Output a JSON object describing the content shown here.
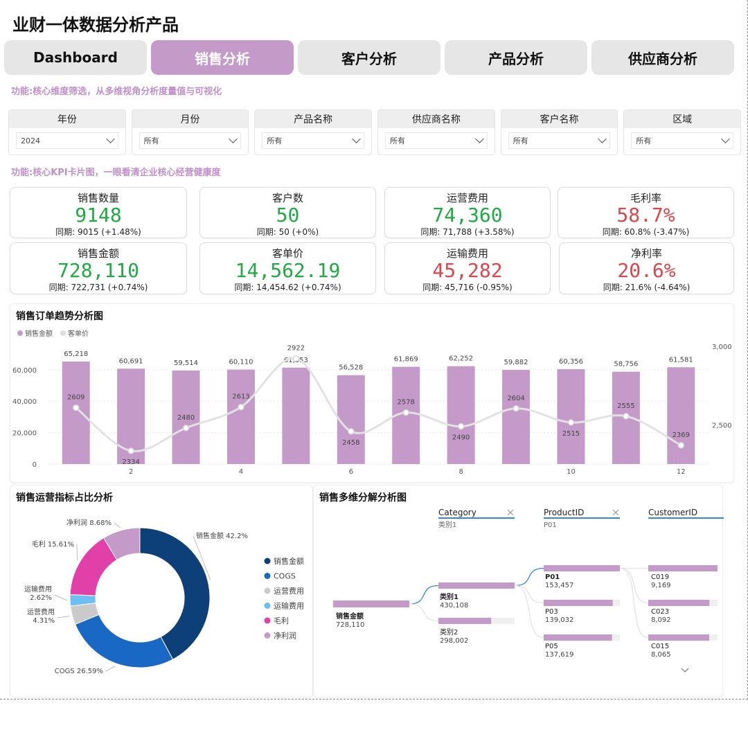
{
  "title": "业财一体数据分析产品",
  "tabs": [
    {
      "label": "Dashboard",
      "active": false
    },
    {
      "label": "销售分析",
      "active": true
    },
    {
      "label": "客户分析",
      "active": false
    },
    {
      "label": "产品分析",
      "active": false
    },
    {
      "label": "供应商分析",
      "active": false
    }
  ],
  "notes": {
    "filters": "功能:核心维度筛选，从多维视角分析度量值与可视化",
    "kpis": "功能:核心KPI卡片图，一眼看清企业核心经营健康度"
  },
  "filters": [
    {
      "label": "年份",
      "value": "2024"
    },
    {
      "label": "月份",
      "value": "所有"
    },
    {
      "label": "产品名称",
      "value": "所有"
    },
    {
      "label": "供应商名称",
      "value": "所有"
    },
    {
      "label": "客户名称",
      "value": "所有"
    },
    {
      "label": "区域",
      "value": "所有"
    }
  ],
  "kpis": [
    {
      "label": "销售数量",
      "value": "9148",
      "sub": "同期: 9015 (+1.48%)",
      "color": "#1faa43"
    },
    {
      "label": "客户数",
      "value": "50",
      "sub": "同期: 50 (+0%)",
      "color": "#1faa43"
    },
    {
      "label": "运营费用",
      "value": "74,360",
      "sub": "同期: 71,788 (+3.58%)",
      "color": "#1faa43"
    },
    {
      "label": "毛利率",
      "value": "58.7%",
      "sub": "同期: 60.8% (-3.47%)",
      "color": "#d9464b"
    },
    {
      "label": "销售金额",
      "value": "728,110",
      "sub": "同期: 722,731 (+0.74%)",
      "color": "#1faa43"
    },
    {
      "label": "客单价",
      "value": "14,562.19",
      "sub": "同期: 14,454.62 (+0.74%)",
      "color": "#1faa43"
    },
    {
      "label": "运输费用",
      "value": "45,282",
      "sub": "同期: 45,716 (-0.95%)",
      "color": "#d9464b"
    },
    {
      "label": "净利率",
      "value": "20.6%",
      "sub": "同期: 21.6% (-4.64%)",
      "color": "#d9464b"
    }
  ],
  "trend": {
    "title": "销售订单趋势分析图",
    "chart_data": {
      "type": "bar",
      "x": [
        1,
        2,
        3,
        4,
        5,
        6,
        7,
        8,
        9,
        10,
        11,
        12
      ],
      "x_tick_labels": [
        "2",
        "4",
        "6",
        "8",
        "10",
        "12"
      ],
      "x_tick_values": [
        2,
        4,
        6,
        8,
        10,
        12
      ],
      "series": [
        {
          "name": "销售金额",
          "type": "bar",
          "axis": "left",
          "color": "#c49ac9",
          "values": [
            65218,
            60691,
            59514,
            60110,
            61353,
            56528,
            61869,
            62252,
            59882,
            60356,
            58756,
            61581
          ],
          "labels": [
            "65,218",
            "60,691",
            "59,514",
            "60,110",
            "61,353",
            "56,528",
            "61,869",
            "62,252",
            "59,882",
            "60,356",
            "58,756",
            "61,581"
          ]
        },
        {
          "name": "客单价",
          "type": "line",
          "axis": "right",
          "color": "#e2e2e2",
          "values": [
            2609,
            2334,
            2480,
            2613,
            2922,
            2458,
            2578,
            2490,
            2604,
            2515,
            2555,
            2369
          ],
          "labels": [
            "2609",
            "2334",
            "2480",
            "2613",
            "2922",
            "2458",
            "2578",
            "2490",
            "2604",
            "2515",
            "2555",
            "2369"
          ]
        }
      ],
      "y_left": {
        "ylim": [
          0,
          65218
        ],
        "ticks": [
          0,
          20000,
          40000,
          60000
        ],
        "tick_labels": [
          "0",
          "20,000",
          "40,000",
          "60,000"
        ]
      },
      "y_right": {
        "ylim": [
          2250,
          3000
        ],
        "ticks": [
          2500,
          3000
        ],
        "tick_labels": [
          "2,500",
          "3,000"
        ]
      },
      "legend": "top-left",
      "grid": true
    }
  },
  "donut": {
    "title": "销售运营指标占比分析",
    "chart_data": {
      "type": "pie",
      "donut": true,
      "slices": [
        {
          "name": "销售金额",
          "value": 42.2,
          "label": "销售金额 42.2%",
          "color": "#0d3f78"
        },
        {
          "name": "COGS",
          "value": 26.59,
          "label": "COGS 26.59%",
          "color": "#1968c4"
        },
        {
          "name": "运营费用",
          "value": 4.31,
          "label": "运营费用 4.31%",
          "color": "#cacaca"
        },
        {
          "name": "运输费用",
          "value": 2.62,
          "label": "运输费用 2.62%",
          "color": "#6bbff2"
        },
        {
          "name": "毛利",
          "value": 15.61,
          "label": "毛利 15.61%",
          "color": "#e040a8"
        },
        {
          "name": "净利润",
          "value": 8.68,
          "label": "净利润 8.68%",
          "color": "#c49ac9"
        }
      ],
      "legend": "right"
    }
  },
  "decomp": {
    "title": "销售多维分解分析图",
    "columns": [
      {
        "header": "Category",
        "filter": "类别1",
        "closable": true
      },
      {
        "header": "ProductID",
        "filter": "P01",
        "closable": true
      },
      {
        "header": "CustomerID",
        "filter": "",
        "closable": false
      }
    ],
    "root": {
      "name": "销售金额",
      "value": "728,110"
    },
    "categories": [
      {
        "name": "类别1",
        "value": "430,108",
        "amount": 430108,
        "selected": true
      },
      {
        "name": "类别2",
        "value": "298,002",
        "amount": 298002,
        "selected": false
      }
    ],
    "products": [
      {
        "name": "P01",
        "value": "153,457",
        "amount": 153457,
        "selected": true
      },
      {
        "name": "P03",
        "value": "139,032",
        "amount": 139032,
        "selected": false
      },
      {
        "name": "P05",
        "value": "137,619",
        "amount": 137619,
        "selected": false
      }
    ],
    "customers": [
      {
        "name": "C019",
        "value": "9,169",
        "amount": 9169
      },
      {
        "name": "C023",
        "value": "8,092",
        "amount": 8092
      },
      {
        "name": "C015",
        "value": "8,065",
        "amount": 8065
      }
    ],
    "expand_icon": "chevron-down-icon"
  }
}
